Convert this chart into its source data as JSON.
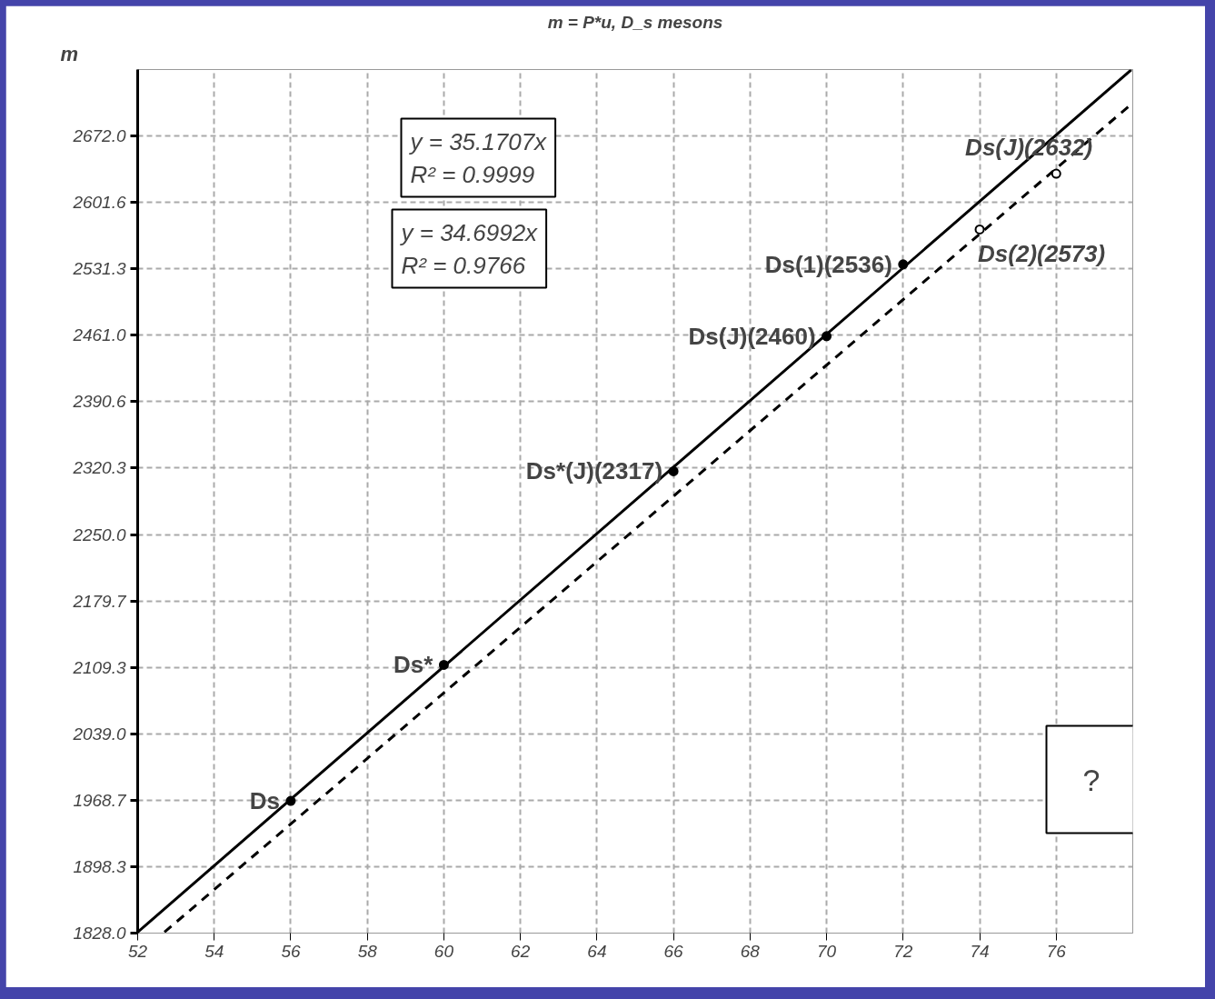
{
  "chart_data": {
    "type": "scatter",
    "title": "m = P*u, D_s mesons",
    "ylabel": "m",
    "xlim": [
      52,
      78
    ],
    "xticks": [
      52,
      54,
      56,
      58,
      60,
      62,
      64,
      66,
      68,
      70,
      72,
      74,
      76
    ],
    "ylim": [
      1828.0,
      2742.3
    ],
    "yticks": [
      {
        "value": 1828.0,
        "label": "1828.0"
      },
      1898.3,
      1968.7,
      {
        "value": 2039.0,
        "label": "2039.0"
      },
      2109.3,
      2179.7,
      {
        "value": 2250.0,
        "label": "2250.0"
      },
      2320.3,
      2390.6,
      {
        "value": 2461.0,
        "label": "2461.0"
      },
      2531.3,
      2601.6,
      {
        "value": 2672.0,
        "label": "2672.0"
      }
    ],
    "grid": true,
    "marker": "circle",
    "series": [
      {
        "type": "line",
        "color": "#000000",
        "line_style": "solid",
        "marker": "none",
        "x": [
          52,
          77.96
        ],
        "values": [
          1829,
          2742
        ]
      },
      {
        "type": "line",
        "color": "#000000",
        "line_style": "dashed",
        "marker": "none",
        "x": [
          52.7,
          78
        ],
        "values": [
          1829,
          2707
        ]
      },
      {
        "color": "#000000",
        "x": [
          56,
          60,
          66,
          70,
          72
        ],
        "values": [
          1968,
          2112,
          2317,
          2460,
          2536
        ]
      },
      {
        "color": "#ffffff",
        "x": [
          74,
          76
        ],
        "values": [
          2573,
          2632
        ]
      }
    ],
    "annotations": [
      {
        "text": "Ds",
        "x": 56,
        "y": 1968
      },
      {
        "text": "Ds*",
        "x": 60,
        "y": 2112
      },
      {
        "text": "Ds*(J)(2317)",
        "x": 66,
        "y": 2317
      },
      {
        "text": "Ds(J)(2460)",
        "x": 70,
        "y": 2460
      },
      {
        "text": "Ds(1)(2536)",
        "x": 72,
        "y": 2536
      },
      {
        "text": "Ds(2)(2573)",
        "x": 74,
        "y": 2573
      },
      {
        "text": "Ds(J)(2632)",
        "x": 76,
        "y": 2632
      },
      "y = 35.1707x\nR² = 0.9999",
      "y = 34.6992x\nR² = 0.9766",
      "?"
    ]
  }
}
